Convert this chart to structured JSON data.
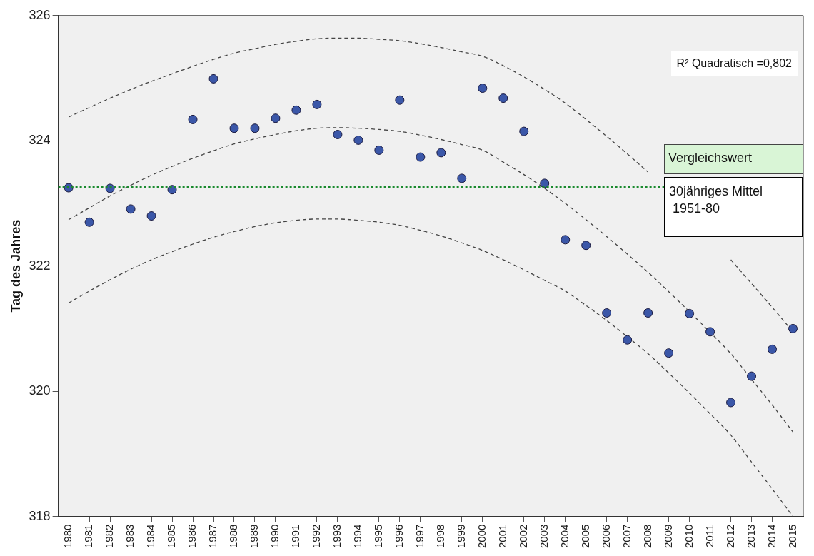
{
  "chart_data": {
    "type": "scatter",
    "ylabel": "Tag des Jahres",
    "categories": [
      "1980",
      "1981",
      "1982",
      "1983",
      "1984",
      "1985",
      "1986",
      "1987",
      "1988",
      "1989",
      "1990",
      "1991",
      "1992",
      "1993",
      "1994",
      "1995",
      "1996",
      "1997",
      "1998",
      "1999",
      "2000",
      "2001",
      "2002",
      "2003",
      "2004",
      "2005",
      "2006",
      "2007",
      "2008",
      "2009",
      "2010",
      "2011",
      "2012",
      "2013",
      "2014",
      "2015"
    ],
    "series": [
      {
        "color": "#3b57a8",
        "values": [
          323.25,
          322.7,
          323.24,
          322.91,
          322.8,
          323.22,
          324.34,
          324.99,
          324.2,
          324.2,
          324.36,
          324.49,
          324.58,
          324.1,
          324.01,
          323.85,
          324.65,
          323.74,
          323.81,
          323.4,
          324.84,
          324.68,
          324.15,
          323.32,
          322.42,
          322.33,
          321.25,
          320.82,
          321.25,
          320.61,
          321.24,
          320.95,
          319.82,
          320.24,
          320.67,
          321.0
        ]
      },
      {
        "type": "line",
        "color": "#444444",
        "line_style": "dashed",
        "marker": "none",
        "values": [
          324.38,
          324.53,
          324.68,
          324.82,
          324.95,
          325.07,
          325.19,
          325.3,
          325.4,
          325.47,
          325.54,
          325.59,
          325.63,
          325.64,
          325.64,
          325.62,
          325.6,
          325.55,
          325.49,
          325.42,
          325.35,
          325.2,
          325.02,
          324.82,
          324.6,
          324.34,
          324.07,
          323.79,
          323.5,
          null,
          null,
          null,
          322.1,
          321.72,
          321.34,
          320.95
        ]
      },
      {
        "type": "line",
        "color": "#444444",
        "line_style": "dashed",
        "marker": "none",
        "values": [
          322.74,
          322.93,
          323.12,
          323.29,
          323.45,
          323.59,
          323.72,
          323.84,
          323.95,
          324.03,
          324.1,
          324.16,
          324.2,
          324.21,
          324.2,
          324.18,
          324.15,
          324.09,
          324.02,
          323.94,
          323.85,
          323.66,
          323.46,
          323.24,
          323.0,
          322.74,
          322.47,
          322.19,
          321.9,
          321.59,
          321.27,
          320.94,
          320.6,
          320.19,
          319.78,
          319.35
        ]
      },
      {
        "type": "line",
        "color": "#444444",
        "line_style": "dashed",
        "marker": "none",
        "values": [
          321.41,
          321.6,
          321.78,
          321.95,
          322.1,
          322.23,
          322.35,
          322.46,
          322.55,
          322.63,
          322.69,
          322.73,
          322.75,
          322.75,
          322.73,
          322.7,
          322.65,
          322.57,
          322.48,
          322.37,
          322.25,
          322.1,
          321.94,
          321.77,
          321.6,
          321.37,
          321.13,
          320.87,
          320.6,
          320.29,
          319.97,
          319.64,
          319.3,
          318.87,
          318.44,
          318.0
        ]
      }
    ],
    "marker": "circle",
    "ylim": [
      318,
      326
    ],
    "yticks": [
      318,
      320,
      322,
      324,
      326
    ],
    "grid": false,
    "legend": false,
    "ref_lines": [
      {
        "axis": "y",
        "value": 323.26,
        "label": "Vergleichswert",
        "color": "#1a8a2e",
        "line_style": "dotted"
      }
    ],
    "annotations": [
      "R² Quadratisch =0,802",
      "30jähriges Mittel\n 1951-80"
    ]
  }
}
